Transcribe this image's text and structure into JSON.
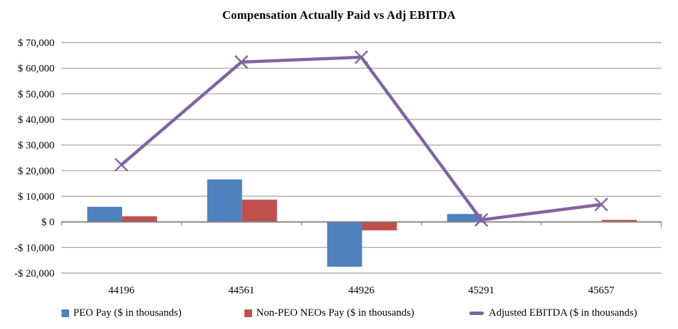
{
  "chart_data": {
    "type": "combo",
    "title": "Compensation Actually Paid vs Adj EBITDA",
    "categories": [
      "44196",
      "44561",
      "44926",
      "45291",
      "45657"
    ],
    "series": [
      {
        "name": "PEO Pay ($ in thousands)",
        "type": "bar",
        "color": "#4F81BD",
        "values": [
          5900,
          16600,
          -17500,
          3100,
          0
        ]
      },
      {
        "name": "Non-PEO NEOs Pay ($ in thousands)",
        "type": "bar",
        "color": "#C0504D",
        "values": [
          2200,
          8700,
          -3300,
          0,
          800
        ]
      },
      {
        "name": "Adjusted EBITDA ($ in thousands)",
        "type": "line",
        "marker": "x",
        "color": "#8064A2",
        "values": [
          22300,
          62400,
          64300,
          800,
          6800
        ]
      }
    ],
    "y_axis": {
      "min": -20000,
      "max": 70000,
      "step": 10000,
      "tick_labels": [
        "$ 70,000",
        "$ 60,000",
        "$ 50,000",
        "$ 40,000",
        "$ 30,000",
        "$ 20,000",
        "$ 10,000",
        "$ 0",
        "-$ 10,000",
        "-$ 20,000"
      ]
    },
    "grid": true,
    "legend_position": "bottom",
    "colors": {
      "gridline": "#9d9d9d",
      "zero_axis": "#808080",
      "text": "#000000",
      "background": "#FFFFFF"
    }
  }
}
